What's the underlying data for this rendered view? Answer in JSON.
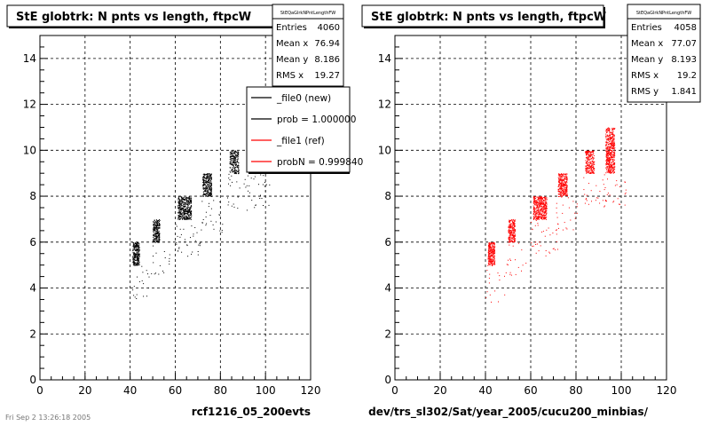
{
  "footer": {
    "date_stamp": "Fri Sep 2 13:26:18 2005"
  },
  "chart_data": [
    {
      "type": "scatter",
      "title": "StE globtrk: N pnts vs length, ftpcW",
      "xlabel": "rcf1216_05_200evts",
      "ylabel": "",
      "xlim": [
        0,
        120
      ],
      "ylim": [
        0,
        15
      ],
      "x_ticks": [
        0,
        20,
        40,
        60,
        80,
        100,
        120
      ],
      "y_ticks": [
        0,
        2,
        4,
        6,
        8,
        10,
        12,
        14
      ],
      "grid": true,
      "marker_color": "#000000",
      "stats": {
        "name": "StEQaGlrkNPntLengthFW",
        "rows": [
          {
            "label": "Entries",
            "value": "4060"
          },
          {
            "label": "Mean x",
            "value": "76.94"
          },
          {
            "label": "Mean y",
            "value": "8.186"
          },
          {
            "label": "RMS x",
            "value": "19.27"
          }
        ]
      },
      "legend": {
        "placement": "top-right",
        "entries": [
          {
            "label": "_file0 (new)",
            "color": "#000000"
          },
          {
            "label": "prob = 1.000000",
            "color": "#000000"
          },
          {
            "label": "_file1 (ref)",
            "color": "#ff0000"
          },
          {
            "label": "probN = 0.999840",
            "color": "#ff0000"
          }
        ]
      },
      "clusters": [
        {
          "x": [
            41,
            44
          ],
          "y": [
            5,
            6
          ],
          "density": 0.95
        },
        {
          "x": [
            50,
            53
          ],
          "y": [
            6,
            7
          ],
          "density": 0.85
        },
        {
          "x": [
            61,
            67
          ],
          "y": [
            7,
            8
          ],
          "density": 0.8
        },
        {
          "x": [
            72,
            76
          ],
          "y": [
            8,
            9
          ],
          "density": 0.8
        },
        {
          "x": [
            84,
            88
          ],
          "y": [
            9,
            10
          ],
          "density": 0.6
        },
        {
          "x": [
            93,
            97
          ],
          "y": [
            9,
            10
          ],
          "density": 0.3
        }
      ]
    },
    {
      "type": "scatter",
      "title": "StE globtrk: N pnts vs length, ftpcW",
      "xlabel": "dev/trs_sl302/Sat/year_2005/cucu200_minbias/",
      "ylabel": "",
      "xlim": [
        0,
        120
      ],
      "ylim": [
        0,
        15
      ],
      "x_ticks": [
        0,
        20,
        40,
        60,
        80,
        100,
        120
      ],
      "y_ticks": [
        0,
        2,
        4,
        6,
        8,
        10,
        12,
        14
      ],
      "grid": true,
      "marker_color": "#ff0000",
      "stats": {
        "name": "StEQaGlrkNPntLengthFW",
        "rows": [
          {
            "label": "Entries",
            "value": "4058"
          },
          {
            "label": "Mean x",
            "value": "77.07"
          },
          {
            "label": "Mean y",
            "value": "8.193"
          },
          {
            "label": "RMS x",
            "value": "19.2"
          },
          {
            "label": "RMS y",
            "value": "1.841"
          }
        ]
      },
      "clusters": [
        {
          "x": [
            41,
            44
          ],
          "y": [
            5,
            6
          ],
          "density": 0.95
        },
        {
          "x": [
            50,
            53
          ],
          "y": [
            6,
            7
          ],
          "density": 0.85
        },
        {
          "x": [
            61,
            67
          ],
          "y": [
            7,
            8
          ],
          "density": 0.8
        },
        {
          "x": [
            72,
            76
          ],
          "y": [
            8,
            9
          ],
          "density": 0.8
        },
        {
          "x": [
            84,
            88
          ],
          "y": [
            9,
            10
          ],
          "density": 0.65
        },
        {
          "x": [
            93,
            97
          ],
          "y": [
            9,
            11
          ],
          "density": 0.7
        }
      ]
    }
  ]
}
